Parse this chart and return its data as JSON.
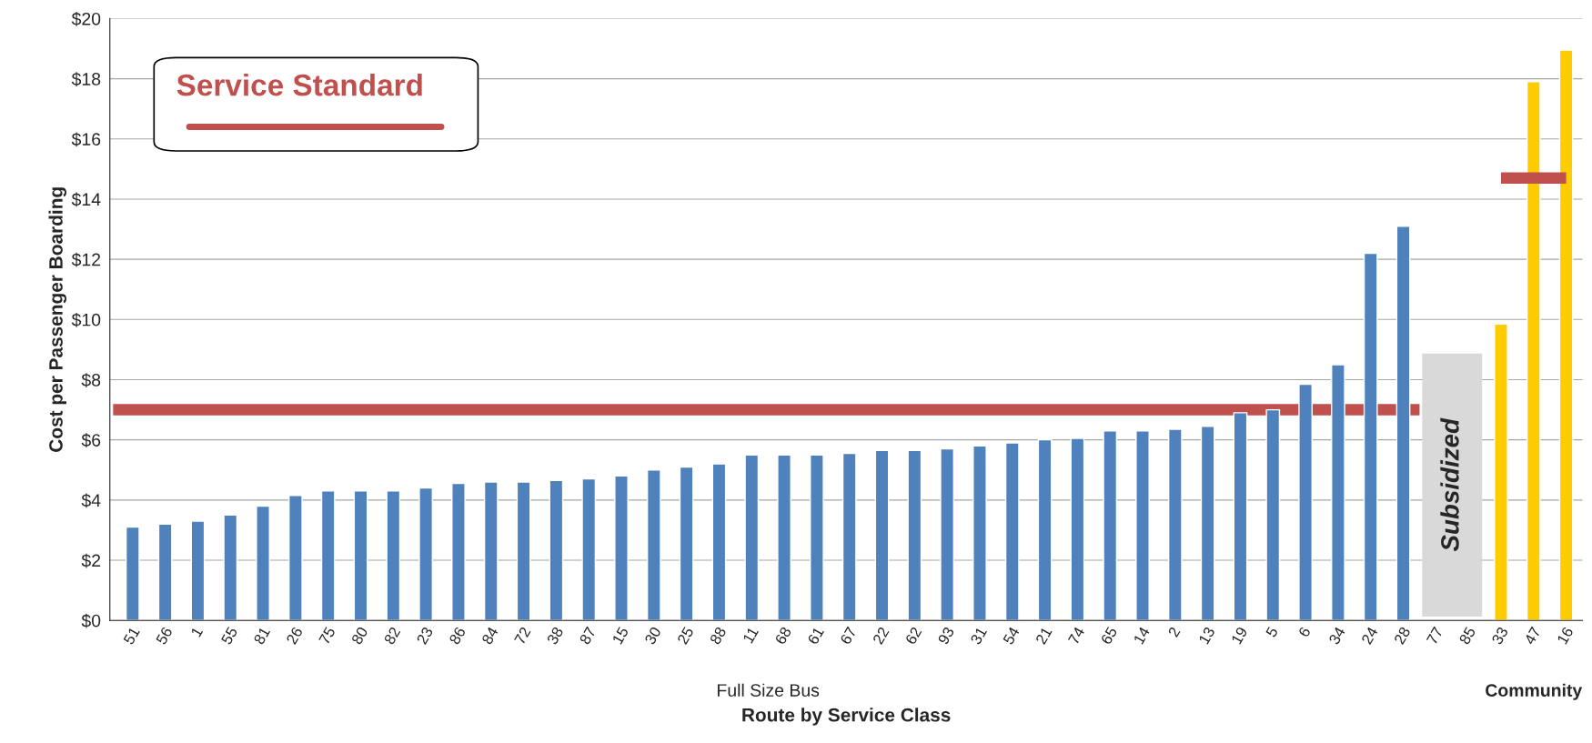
{
  "chart_data": {
    "type": "bar",
    "xlabel": "Route by Service Class",
    "ylabel": "Cost per Passenger Boarding",
    "categories": [
      "51",
      "56",
      "1",
      "55",
      "81",
      "26",
      "75",
      "80",
      "82",
      "23",
      "86",
      "84",
      "72",
      "38",
      "87",
      "15",
      "30",
      "25",
      "88",
      "11",
      "68",
      "61",
      "67",
      "22",
      "62",
      "93",
      "31",
      "54",
      "21",
      "74",
      "65",
      "14",
      "2",
      "13",
      "19",
      "5",
      "6",
      "34",
      "24",
      "28",
      "77",
      "85",
      "33",
      "47",
      "16"
    ],
    "series": [
      {
        "color": "#4f81bd",
        "values": [
          3.1,
          3.2,
          3.3,
          3.5,
          3.8,
          4.15,
          4.3,
          4.3,
          4.3,
          4.4,
          4.55,
          4.6,
          4.6,
          4.65,
          4.7,
          4.8,
          5.0,
          5.1,
          5.2,
          5.5,
          5.5,
          5.5,
          5.55,
          5.65,
          5.65,
          5.7,
          5.8,
          5.9,
          6.0,
          6.05,
          6.3,
          6.3,
          6.35,
          6.45,
          6.9,
          7.0,
          7.85,
          8.5,
          12.2,
          13.1,
          null,
          null,
          null,
          null,
          null
        ]
      },
      {
        "color": "#ffcc00",
        "values": [
          null,
          null,
          null,
          null,
          null,
          null,
          null,
          null,
          null,
          null,
          null,
          null,
          null,
          null,
          null,
          null,
          null,
          null,
          null,
          null,
          null,
          null,
          null,
          null,
          null,
          null,
          null,
          null,
          null,
          null,
          null,
          null,
          null,
          null,
          null,
          null,
          null,
          null,
          null,
          null,
          null,
          null,
          9.85,
          17.9,
          18.95
        ]
      },
      {
        "type": "line",
        "color": "#c0504d",
        "values": [
          null,
          null,
          null,
          null,
          null,
          null,
          null,
          null,
          null,
          null,
          null,
          null,
          null,
          null,
          null,
          null,
          null,
          null,
          null,
          null,
          null,
          null,
          null,
          null,
          null,
          null,
          null,
          null,
          null,
          null,
          null,
          null,
          null,
          null,
          null,
          null,
          null,
          null,
          null,
          null,
          null,
          null,
          14.7,
          14.7,
          14.7
        ]
      }
    ],
    "ylim": [
      0,
      20
    ],
    "yticks": [
      {
        "value": 0,
        "label": "$0"
      },
      {
        "value": 2,
        "label": "$2"
      },
      {
        "value": 4,
        "label": "$4"
      },
      {
        "value": 6,
        "label": "$6"
      },
      {
        "value": 8,
        "label": "$8"
      },
      {
        "value": 10,
        "label": "$10"
      },
      {
        "value": 12,
        "label": "$12"
      },
      {
        "value": 14,
        "label": "$14"
      },
      {
        "value": 16,
        "label": "$16"
      },
      {
        "value": 18,
        "label": "$18"
      },
      {
        "value": 20,
        "label": "$20"
      }
    ],
    "grid": "y",
    "legend": "top left",
    "ref_lines": [
      {
        "axis": "y",
        "value": 7,
        "label": "Service Standard",
        "color": "#c0504d"
      }
    ],
    "annotations": [
      "Subsidized",
      "Full Size Bus",
      "Community"
    ]
  }
}
